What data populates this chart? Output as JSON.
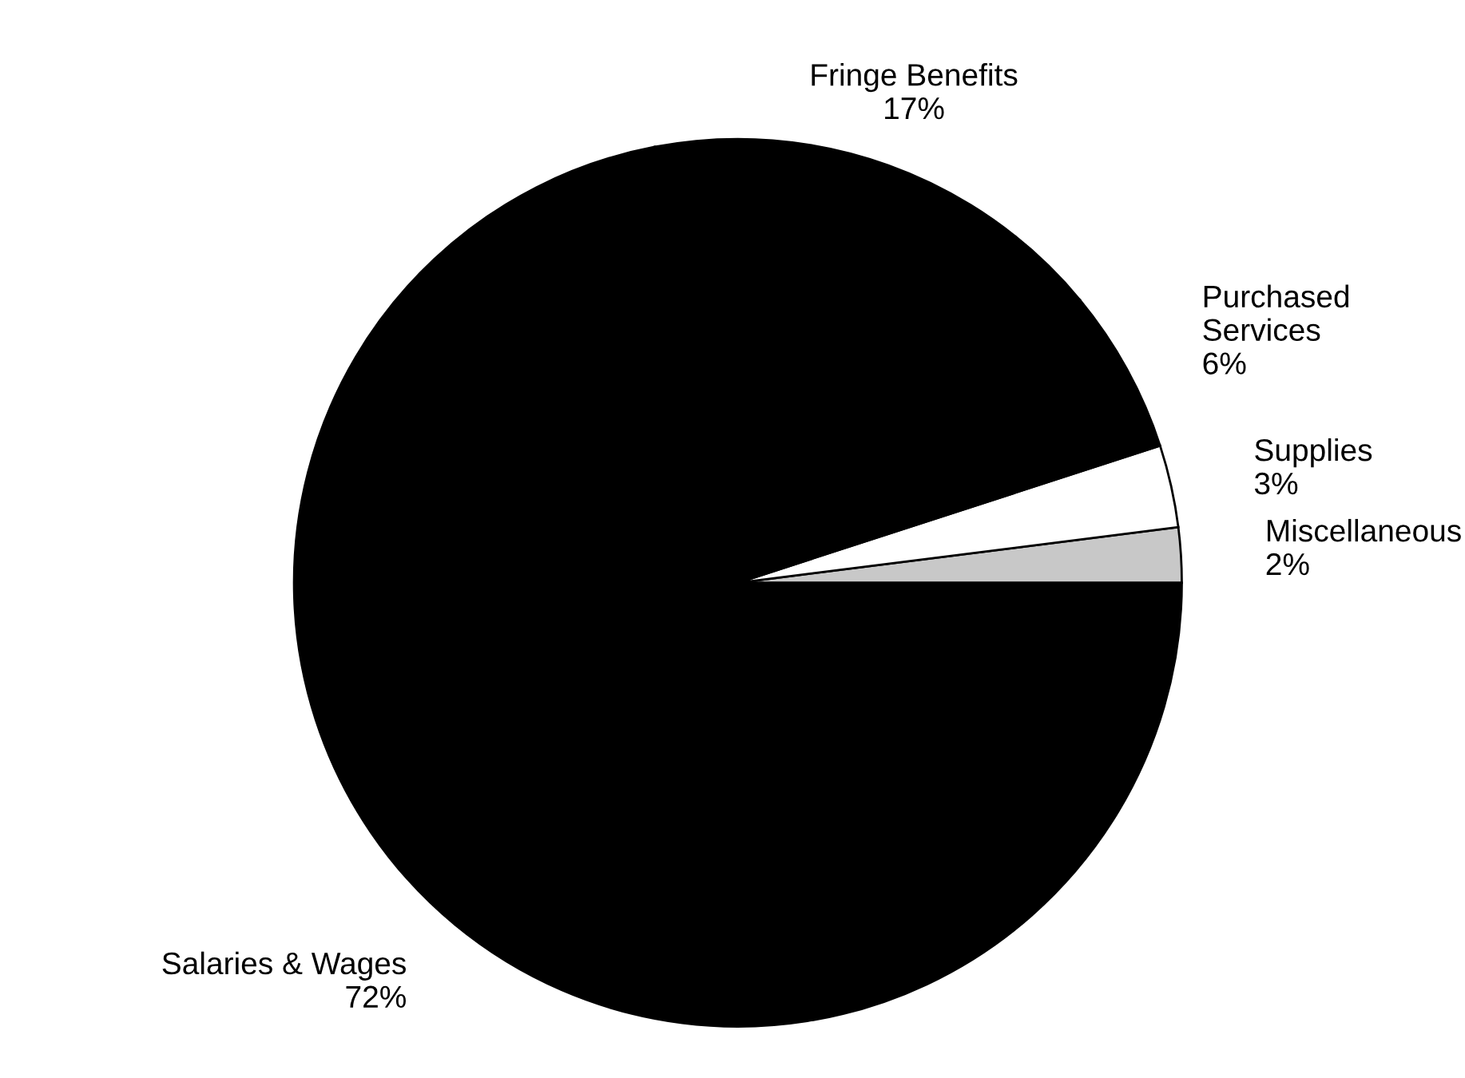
{
  "chart_data": {
    "type": "pie",
    "categories": [
      "Miscellaneous",
      "Supplies",
      "Purchased\nServices",
      "Fringe Benefits",
      "Salaries & Wages"
    ],
    "values": [
      2,
      3,
      6,
      17,
      72
    ],
    "value_labels": [
      "2%",
      "3%",
      "6%",
      "17%",
      "72%"
    ],
    "colors": [
      "#c8c8c8",
      "#ffffff",
      "#000000",
      "#000000",
      "#000000"
    ],
    "legend": false
  }
}
